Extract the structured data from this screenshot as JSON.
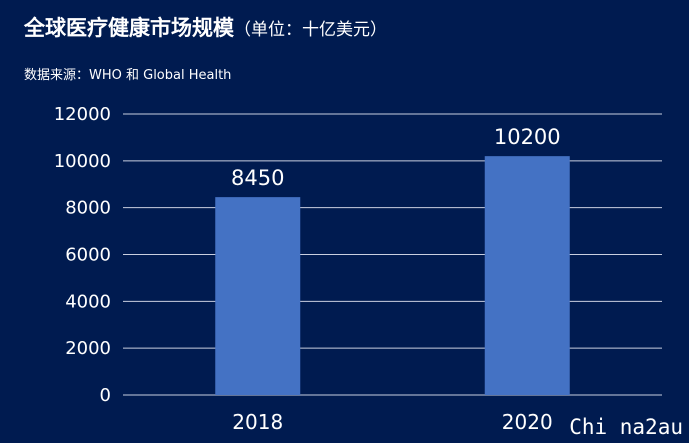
{
  "chart_data": {
    "type": "bar",
    "title": "全球医疗健康市场规模",
    "title_unit": "（单位：十亿美元）",
    "source": "数据来源：WHO 和 Global Health",
    "categories": [
      "2018",
      "2020"
    ],
    "values": [
      8450,
      10200
    ],
    "ylim": [
      0,
      12000
    ],
    "yticks": [
      0,
      2000,
      4000,
      6000,
      8000,
      10000,
      12000
    ],
    "xlabel": "",
    "ylabel": "",
    "grid": true,
    "bar_color": "#4472c4",
    "grid_color": "#c9cfe0",
    "background_color": "#001b50"
  },
  "watermark": "Chi na2au"
}
